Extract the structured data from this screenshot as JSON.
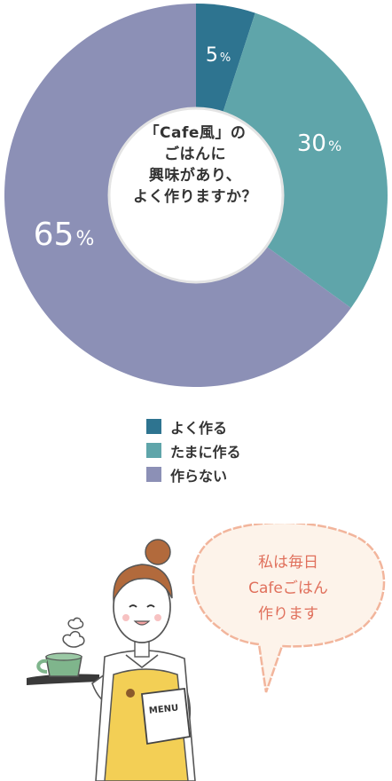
{
  "chart_data": {
    "type": "pie",
    "title": "「Cafe風」のごはんに興味があり、よく作りますか？",
    "slices": [
      {
        "name": "よく作る",
        "value": 5,
        "label": "5%",
        "color": "#2e7490"
      },
      {
        "name": "たまに作る",
        "value": 30,
        "label": "30%",
        "color": "#5fa5aa"
      },
      {
        "name": "作らない",
        "value": 65,
        "label": "65%",
        "color": "#8c90b6"
      }
    ],
    "legend_placement": "bottom"
  },
  "center_question": {
    "line1": "「Cafe風」の",
    "line2": "ごはんに",
    "line3": "興味があり、",
    "line4": "よく作りますか？"
  },
  "legend": [
    {
      "label": "よく作る",
      "color": "#2e7490"
    },
    {
      "label": "たまに作る",
      "color": "#5fa5aa"
    },
    {
      "label": "作らない",
      "color": "#8c90b6"
    }
  ],
  "illustration": {
    "menu_text": "MENU",
    "bubble_line1": "私は毎日",
    "bubble_line2": "Cafeごはん",
    "bubble_line3": "作ります"
  },
  "colors": {
    "apron": "#f3cf55",
    "cup": "#7fb58c",
    "bubble_outline": "#f2b59c",
    "bubble_text": "#e0705c",
    "hair": "#b26a3c"
  }
}
